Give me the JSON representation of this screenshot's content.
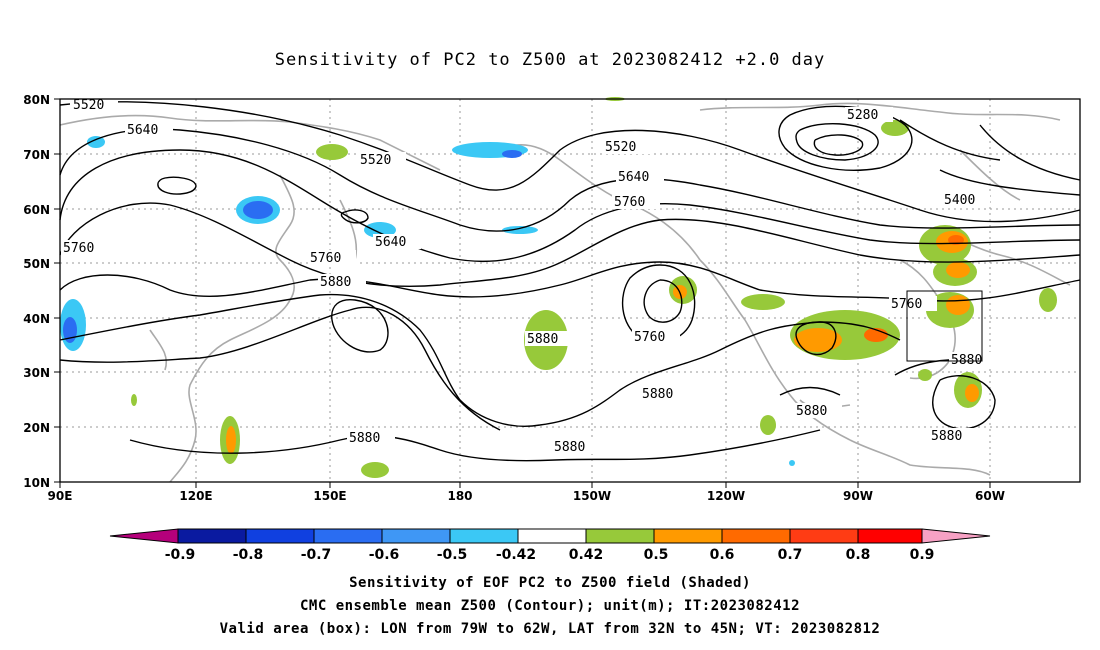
{
  "title": "Sensitivity of PC2 to Z500 at 2023082412 +2.0 day",
  "captions": {
    "line1": "Sensitivity of EOF PC2 to Z500 field (Shaded)",
    "line2": "CMC ensemble mean Z500 (Contour); unit(m); IT:2023082412",
    "line3": "Valid area (box): LON from 79W to 62W, LAT from 32N to 45N; VT: 2023082812"
  },
  "lat_labels": [
    "80N",
    "70N",
    "60N",
    "50N",
    "40N",
    "30N",
    "20N",
    "10N"
  ],
  "lon_labels": [
    "90E",
    "120E",
    "150E",
    "180",
    "150W",
    "120W",
    "90W",
    "60W"
  ],
  "colorbar": {
    "labels": [
      "-0.9",
      "-0.8",
      "-0.7",
      "-0.6",
      "-0.5",
      "-0.42",
      "0.42",
      "0.5",
      "0.6",
      "0.7",
      "0.8",
      "0.9"
    ],
    "colors": [
      "#b5007b",
      "#0a1aa0",
      "#1040e0",
      "#2a6df2",
      "#3f97f5",
      "#3bc8f5",
      "#ffffff",
      "#97c93a",
      "#ff9a00",
      "#ff6a00",
      "#ff3c14",
      "#ff0000",
      "#f7a1c4"
    ]
  },
  "contour_labels": [
    {
      "text": "5520",
      "id": "c5520a"
    },
    {
      "text": "5640",
      "id": "c5640a"
    },
    {
      "text": "5520",
      "id": "c5520b"
    },
    {
      "text": "5640",
      "id": "c5640b"
    },
    {
      "text": "5760",
      "id": "c5760a"
    },
    {
      "text": "5760",
      "id": "c5760b"
    },
    {
      "text": "5880",
      "id": "c5880a"
    },
    {
      "text": "5880",
      "id": "c5880b"
    },
    {
      "text": "5520",
      "id": "c5520c"
    },
    {
      "text": "5640",
      "id": "c5640c"
    },
    {
      "text": "5760",
      "id": "c5760c"
    },
    {
      "text": "5760",
      "id": "c5760d"
    },
    {
      "text": "5880",
      "id": "c5880c"
    },
    {
      "text": "5280",
      "id": "c5280"
    },
    {
      "text": "5400",
      "id": "c5400"
    },
    {
      "text": "5760",
      "id": "c5760e"
    },
    {
      "text": "5880",
      "id": "c5880d"
    },
    {
      "text": "5880",
      "id": "c5880e"
    },
    {
      "text": "5880",
      "id": "c5880f"
    },
    {
      "text": "5880",
      "id": "c5880g"
    },
    {
      "text": "5880",
      "id": "c5880h"
    }
  ],
  "valid_box": {
    "lon_from": "79W",
    "lon_to": "62W",
    "lat_from": "32N",
    "lat_to": "45N"
  }
}
